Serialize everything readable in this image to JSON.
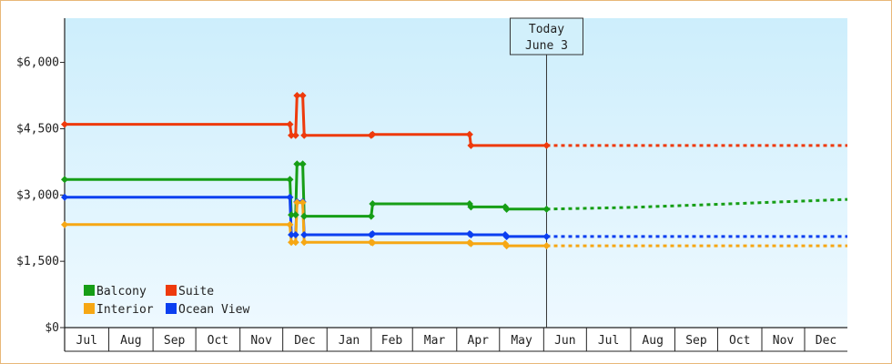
{
  "chart_data": {
    "type": "line",
    "title": "",
    "xlabel": "",
    "ylabel": "",
    "ylim": [
      0,
      7000
    ],
    "y_ticks": [
      {
        "value": 0,
        "label": "$0"
      },
      {
        "value": 1500,
        "label": "$1,500"
      },
      {
        "value": 3000,
        "label": "$3,000"
      },
      {
        "value": 4500,
        "label": "$4,500"
      },
      {
        "value": 6000,
        "label": "$6,000"
      }
    ],
    "x_domain": [
      "2023-07-01",
      "2024-12-31"
    ],
    "x_month_labels": [
      "Jul",
      "Aug",
      "Sep",
      "Oct",
      "Nov",
      "Dec",
      "Jan",
      "Feb",
      "Mar",
      "Apr",
      "May",
      "Jun",
      "Jul",
      "Aug",
      "Sep",
      "Oct",
      "Nov",
      "Dec"
    ],
    "grid": false,
    "legend_position": "bottom-left",
    "today": {
      "date": "2024-06-03",
      "label_line1": "Today",
      "label_line2": "June 3"
    },
    "series": [
      {
        "name": "Suite",
        "color": "#ee3a0c",
        "step": true,
        "points": [
          {
            "x": "2023-07-01",
            "y": 4600
          },
          {
            "x": "2023-12-06",
            "y": 4600
          },
          {
            "x": "2023-12-07",
            "y": 4350
          },
          {
            "x": "2023-12-10",
            "y": 4350
          },
          {
            "x": "2023-12-11",
            "y": 5250
          },
          {
            "x": "2023-12-15",
            "y": 5250
          },
          {
            "x": "2023-12-16",
            "y": 4350
          },
          {
            "x": "2024-02-01",
            "y": 4350
          },
          {
            "x": "2024-02-02",
            "y": 4370
          },
          {
            "x": "2024-04-10",
            "y": 4370
          },
          {
            "x": "2024-04-11",
            "y": 4120
          },
          {
            "x": "2024-06-03",
            "y": 4120
          }
        ],
        "forecast": [
          {
            "x": "2024-06-03",
            "y": 4120
          },
          {
            "x": "2024-12-31",
            "y": 4120
          }
        ]
      },
      {
        "name": "Balcony",
        "color": "#169e16",
        "step": true,
        "points": [
          {
            "x": "2023-07-01",
            "y": 3350
          },
          {
            "x": "2023-12-06",
            "y": 3350
          },
          {
            "x": "2023-12-07",
            "y": 2550
          },
          {
            "x": "2023-12-10",
            "y": 2550
          },
          {
            "x": "2023-12-11",
            "y": 3700
          },
          {
            "x": "2023-12-15",
            "y": 3700
          },
          {
            "x": "2023-12-16",
            "y": 2520
          },
          {
            "x": "2024-02-01",
            "y": 2520
          },
          {
            "x": "2024-02-02",
            "y": 2800
          },
          {
            "x": "2024-04-10",
            "y": 2800
          },
          {
            "x": "2024-04-11",
            "y": 2730
          },
          {
            "x": "2024-05-05",
            "y": 2730
          },
          {
            "x": "2024-05-06",
            "y": 2680
          },
          {
            "x": "2024-06-03",
            "y": 2680
          }
        ],
        "forecast": [
          {
            "x": "2024-06-03",
            "y": 2680
          },
          {
            "x": "2024-08-01",
            "y": 2720
          },
          {
            "x": "2024-10-01",
            "y": 2790
          },
          {
            "x": "2024-12-31",
            "y": 2900
          }
        ]
      },
      {
        "name": "Ocean View",
        "color": "#0b3ff0",
        "step": true,
        "points": [
          {
            "x": "2023-07-01",
            "y": 2950
          },
          {
            "x": "2023-12-06",
            "y": 2950
          },
          {
            "x": "2023-12-07",
            "y": 2100
          },
          {
            "x": "2023-12-10",
            "y": 2100
          },
          {
            "x": "2023-12-11",
            "y": 2850
          },
          {
            "x": "2023-12-15",
            "y": 2850
          },
          {
            "x": "2023-12-16",
            "y": 2100
          },
          {
            "x": "2024-02-01",
            "y": 2100
          },
          {
            "x": "2024-02-02",
            "y": 2120
          },
          {
            "x": "2024-04-10",
            "y": 2120
          },
          {
            "x": "2024-04-11",
            "y": 2100
          },
          {
            "x": "2024-05-05",
            "y": 2100
          },
          {
            "x": "2024-05-06",
            "y": 2060
          },
          {
            "x": "2024-06-03",
            "y": 2060
          }
        ],
        "forecast": [
          {
            "x": "2024-06-03",
            "y": 2060
          },
          {
            "x": "2024-12-31",
            "y": 2060
          }
        ]
      },
      {
        "name": "Interior",
        "color": "#f6a714",
        "step": true,
        "points": [
          {
            "x": "2023-07-01",
            "y": 2330
          },
          {
            "x": "2023-12-06",
            "y": 2330
          },
          {
            "x": "2023-12-07",
            "y": 1930
          },
          {
            "x": "2023-12-10",
            "y": 1930
          },
          {
            "x": "2023-12-11",
            "y": 2830
          },
          {
            "x": "2023-12-15",
            "y": 2830
          },
          {
            "x": "2023-12-16",
            "y": 1930
          },
          {
            "x": "2024-02-01",
            "y": 1930
          },
          {
            "x": "2024-02-02",
            "y": 1920
          },
          {
            "x": "2024-04-10",
            "y": 1920
          },
          {
            "x": "2024-04-11",
            "y": 1900
          },
          {
            "x": "2024-05-05",
            "y": 1900
          },
          {
            "x": "2024-05-06",
            "y": 1850
          },
          {
            "x": "2024-06-03",
            "y": 1850
          }
        ],
        "forecast": [
          {
            "x": "2024-06-03",
            "y": 1850
          },
          {
            "x": "2024-12-31",
            "y": 1850
          }
        ]
      }
    ],
    "legend": [
      {
        "name": "Balcony",
        "color": "#169e16"
      },
      {
        "name": "Suite",
        "color": "#ee3a0c"
      },
      {
        "name": "Interior",
        "color": "#f6a714"
      },
      {
        "name": "Ocean View",
        "color": "#0b3ff0"
      }
    ]
  }
}
